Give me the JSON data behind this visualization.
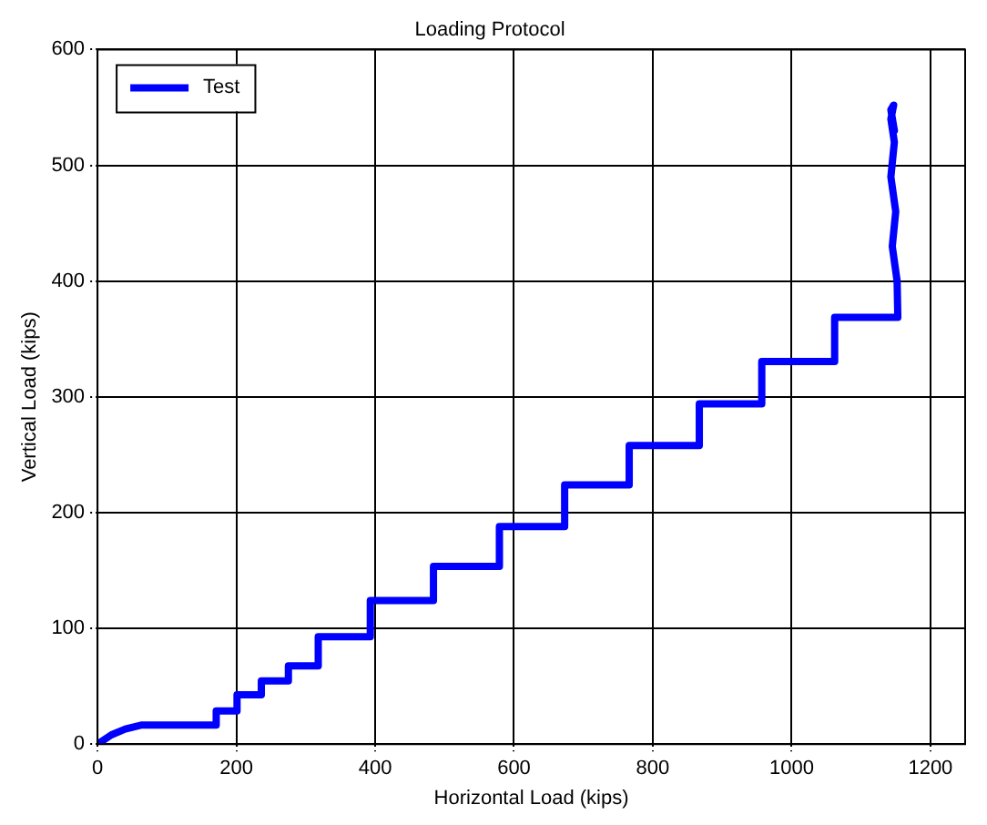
{
  "chart_data": {
    "type": "line",
    "title": "Loading Protocol",
    "xlabel": "Horizontal Load (kips)",
    "ylabel": "Vertical Load (kips)",
    "xlim": [
      0,
      1250
    ],
    "xticks": [
      0,
      200,
      400,
      600,
      800,
      1000,
      1200
    ],
    "ylim": [
      0,
      600
    ],
    "yticks": [
      0,
      100,
      200,
      300,
      400,
      500,
      600
    ],
    "grid": true,
    "legend": "top left",
    "marker": "none",
    "line_style": "solid",
    "series": [
      {
        "name": "Test",
        "color": "#0000ff",
        "x": [
          0,
          20,
          40,
          64,
          171,
          171,
          201,
          201,
          236,
          236,
          275,
          275,
          318,
          318,
          393,
          393,
          484,
          484,
          579,
          579,
          673,
          673,
          766,
          766,
          867,
          867,
          957,
          957,
          1062,
          1062,
          1153,
          1152,
          1145,
          1150,
          1143,
          1148,
          1143,
          1147,
          1143,
          1148
        ],
        "values": [
          0,
          8,
          13,
          16.5,
          16.5,
          28.6,
          28.6,
          42.6,
          42.6,
          54.7,
          54.7,
          67.7,
          67.7,
          92.7,
          92.7,
          124,
          124,
          153.6,
          153.6,
          188,
          188,
          224,
          224,
          258,
          258,
          294,
          294,
          330.6,
          330.6,
          368.7,
          368.7,
          400,
          430,
          460,
          490,
          520,
          540,
          552,
          548,
          530
        ]
      }
    ]
  }
}
